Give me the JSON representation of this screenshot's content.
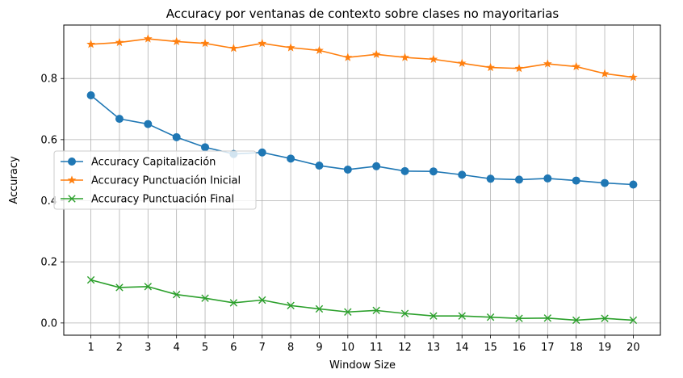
{
  "chart_data": {
    "type": "line",
    "title": "Accuracy por ventanas de contexto sobre clases no mayoritarias",
    "xlabel": "Window Size",
    "ylabel": "Accuracy",
    "x": [
      1,
      2,
      3,
      4,
      5,
      6,
      7,
      8,
      9,
      10,
      11,
      12,
      13,
      14,
      15,
      16,
      17,
      18,
      19,
      20
    ],
    "xlim": [
      0.05,
      20.95
    ],
    "ylim": [
      -0.04,
      0.975
    ],
    "yticks": [
      0.0,
      0.2,
      0.4,
      0.6,
      0.8
    ],
    "ytick_labels": [
      "0.0",
      "0.2",
      "0.4",
      "0.6",
      "0.8"
    ],
    "grid": true,
    "legend_position": "center-left",
    "series": [
      {
        "name": "Accuracy Capitalización",
        "color": "#1f77b4",
        "marker": "circle",
        "values": [
          0.745,
          0.668,
          0.651,
          0.608,
          0.575,
          0.553,
          0.558,
          0.538,
          0.515,
          0.502,
          0.513,
          0.497,
          0.496,
          0.485,
          0.472,
          0.469,
          0.473,
          0.466,
          0.458,
          0.453
        ]
      },
      {
        "name": "Accuracy Punctuación Inicial",
        "color": "#ff7f0e",
        "marker": "star",
        "values": [
          0.912,
          0.918,
          0.93,
          0.921,
          0.915,
          0.899,
          0.915,
          0.901,
          0.892,
          0.869,
          0.879,
          0.869,
          0.863,
          0.85,
          0.836,
          0.833,
          0.848,
          0.839,
          0.816,
          0.804
        ]
      },
      {
        "name": "Accuracy Punctuación Final",
        "color": "#2ca02c",
        "marker": "x",
        "values": [
          0.141,
          0.116,
          0.119,
          0.093,
          0.081,
          0.066,
          0.075,
          0.057,
          0.046,
          0.036,
          0.041,
          0.031,
          0.023,
          0.023,
          0.019,
          0.015,
          0.016,
          0.009,
          0.015,
          0.009
        ]
      }
    ]
  }
}
